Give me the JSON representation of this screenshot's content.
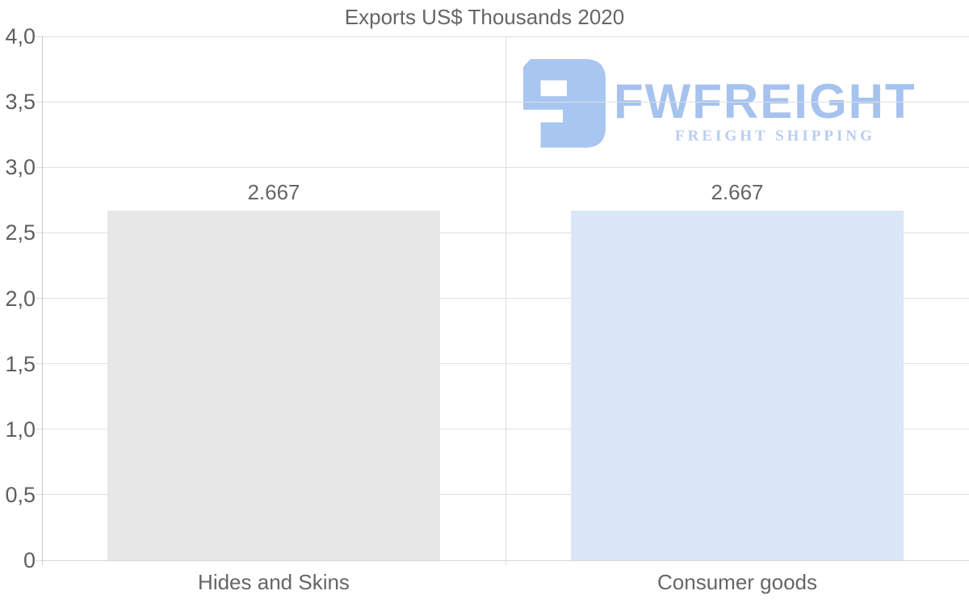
{
  "title": "Exports US$ Thousands 2020",
  "logo": {
    "brand": "FWFREIGHT",
    "tagline": "FREIGHT SHIPPING",
    "mark_color": "#a9c6f1",
    "brand_color": "#a6c2ee",
    "tagline_color": "#b9cdf0"
  },
  "colors": {
    "background": "#ffffff",
    "gridline": "#e0e0e0",
    "axis_line": "#c9c9c9",
    "text": "#666666",
    "tick_text": "#5f5f5f",
    "bar_hides": "#e7e7e7",
    "bar_consumer": "#d9e7f7"
  },
  "chart_data": {
    "type": "bar",
    "title": "Exports US$ Thousands 2020",
    "categories": [
      "Hides and Skins",
      "Consumer goods"
    ],
    "values": [
      2.667,
      2.667
    ],
    "value_labels": [
      "2.667",
      "2.667"
    ],
    "series": [
      {
        "name": "Exports US$ Thousands 2020",
        "values": [
          2.667,
          2.667
        ]
      }
    ],
    "bar_colors": [
      "#e7e7e7",
      "#d9e7f7"
    ],
    "xlabel": "",
    "ylabel": "",
    "ylim": [
      0,
      4
    ],
    "yticks": [
      {
        "value": 0,
        "label": "0"
      },
      {
        "value": 0.5,
        "label": "0,5"
      },
      {
        "value": 1,
        "label": "1,0"
      },
      {
        "value": 1.5,
        "label": "1,5"
      },
      {
        "value": 2,
        "label": "2,0"
      },
      {
        "value": 2.5,
        "label": "2,5"
      },
      {
        "value": 3,
        "label": "3,0"
      },
      {
        "value": 3.5,
        "label": "3,5"
      },
      {
        "value": 4,
        "label": "4,0"
      }
    ],
    "grid": "horizontal gridlines on, vertical category separators on",
    "legend_position": "none",
    "decimal_separator_axis": ",",
    "decimal_separator_labels": "."
  }
}
